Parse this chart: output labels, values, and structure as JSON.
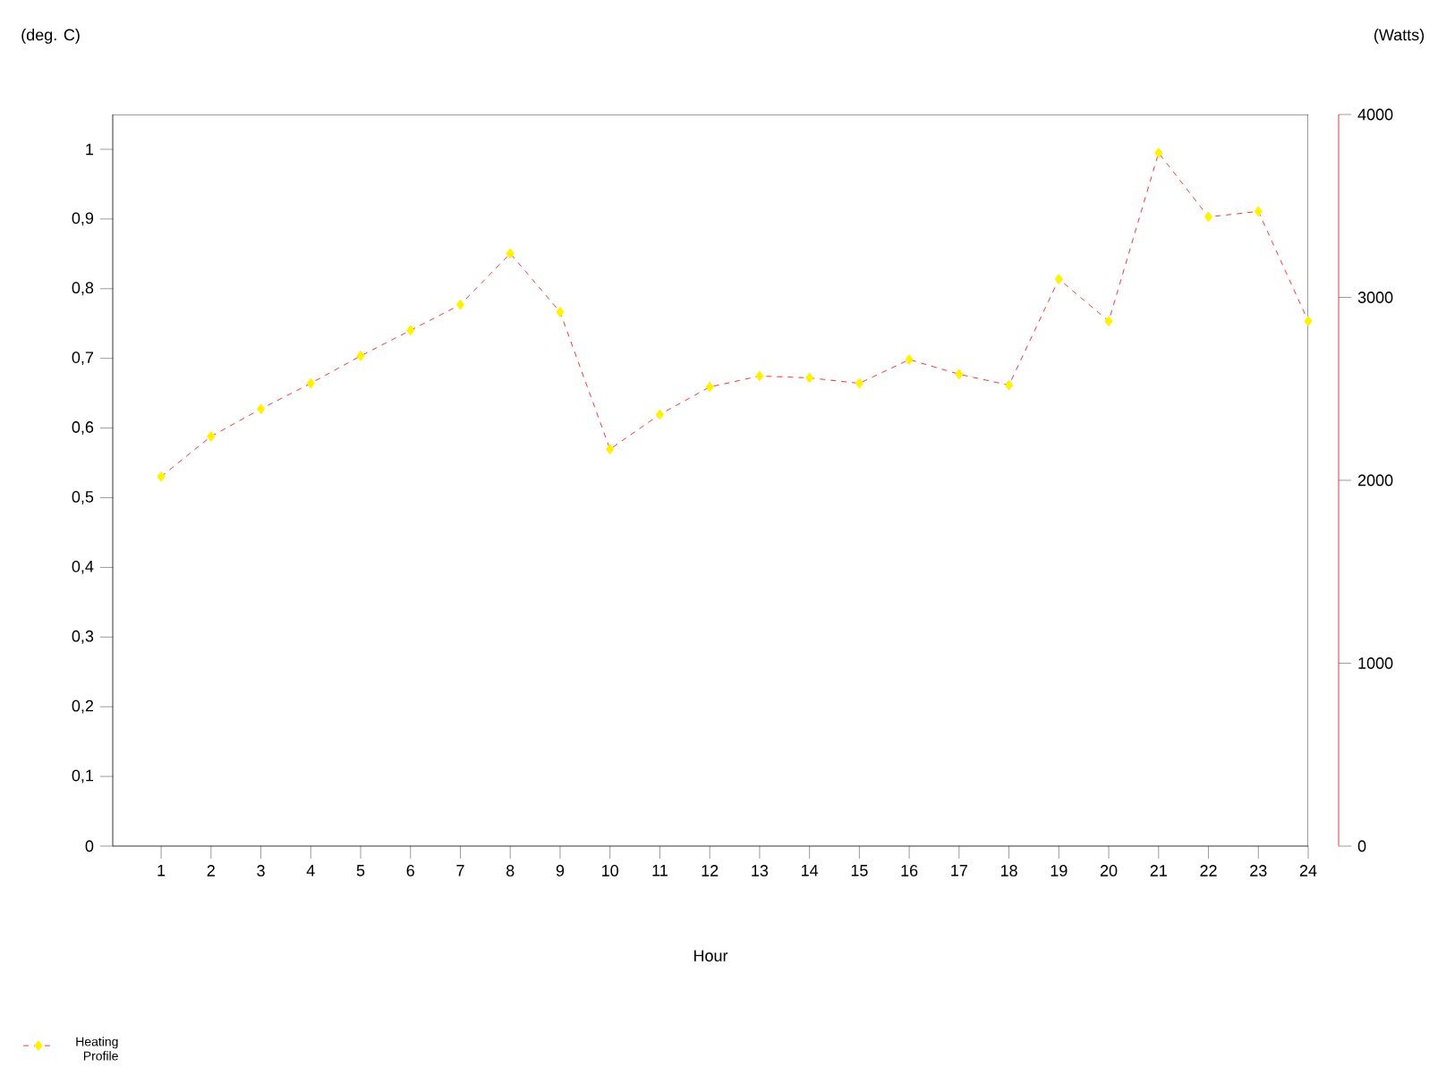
{
  "chart_data": {
    "type": "line",
    "xlabel": "Hour",
    "ylabel": "(deg. C)",
    "y2label": "(Watts)",
    "categories": [
      "1",
      "2",
      "3",
      "4",
      "5",
      "6",
      "7",
      "8",
      "9",
      "10",
      "11",
      "12",
      "13",
      "14",
      "15",
      "16",
      "17",
      "18",
      "19",
      "20",
      "21",
      "22",
      "23",
      "24"
    ],
    "series": [
      {
        "name": "Heating Profile",
        "color": "#ff0000",
        "axis": "y2",
        "values": [
          2020,
          2240,
          2390,
          2530,
          2680,
          2820,
          2960,
          3240,
          2920,
          2170,
          2360,
          2510,
          2570,
          2560,
          2530,
          2660,
          2580,
          2520,
          3100,
          2870,
          3790,
          3440,
          3470,
          2870
        ]
      }
    ],
    "ylim": [
      0,
      1.05
    ],
    "yticks": [
      0,
      {
        "value": 0.1,
        "label": "0,1"
      },
      {
        "value": 0.2,
        "label": "0,2"
      },
      {
        "value": 0.3,
        "label": "0,3"
      },
      {
        "value": 0.4,
        "label": "0,4"
      },
      {
        "value": 0.5,
        "label": "0,5"
      },
      {
        "value": 0.6,
        "label": "0,6"
      },
      {
        "value": 0.7,
        "label": "0,7"
      },
      {
        "value": 0.8,
        "label": "0,8"
      },
      {
        "value": 0.9,
        "label": "0,9"
      },
      1
    ],
    "y2lim": [
      0,
      4000
    ],
    "y2ticks": [
      0,
      1000,
      2000,
      3000,
      4000
    ],
    "legend": "bottom left",
    "marker": "diamond",
    "line_style": "dashed",
    "grid": false
  }
}
